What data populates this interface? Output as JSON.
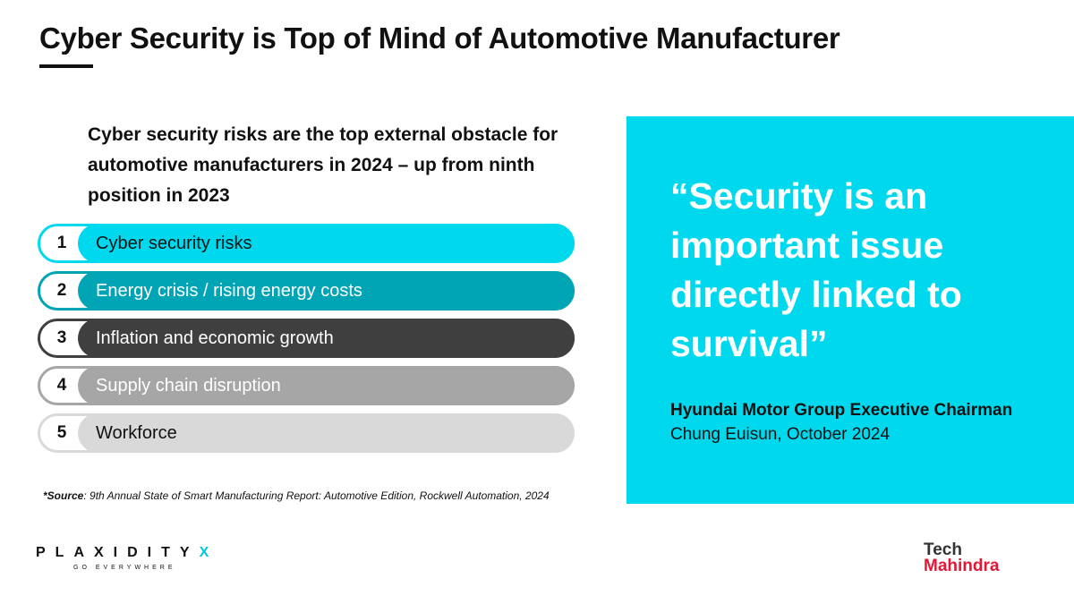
{
  "slide": {
    "title": "Cyber Security is Top of Mind of Automotive Manufacturer"
  },
  "intro": {
    "text": "Cyber security risks are the top external obstacle for automotive manufacturers in 2024 – up from ninth position in 2023"
  },
  "risks": [
    {
      "rank": "1",
      "label": "Cyber security risks",
      "color": "#00d9ed",
      "text_color": "#111111"
    },
    {
      "rank": "2",
      "label": "Energy crisis / rising energy costs",
      "color": "#00a5b5",
      "text_color": "#ffffff"
    },
    {
      "rank": "3",
      "label": "Inflation and economic growth",
      "color": "#3f3f3f",
      "text_color": "#ffffff"
    },
    {
      "rank": "4",
      "label": "Supply chain disruption",
      "color": "#a6a6a6",
      "text_color": "#ffffff"
    },
    {
      "rank": "5",
      "label": "Workforce",
      "color": "#d9d9d9",
      "text_color": "#111111"
    }
  ],
  "source": {
    "label": "*Source",
    "text": ": 9th Annual State of Smart Manufacturing Report: Automotive Edition, Rockwell Automation, 2024"
  },
  "quote": {
    "text": "“Security is an important issue directly linked to survival”",
    "attribution_bold": "Hyundai Motor Group Executive Chairman",
    "attribution_rest": " Chung Euisun, October 2024",
    "panel_color": "#00d9ed"
  },
  "logos": {
    "plaxidity_word": "PLAXIDITY",
    "plaxidity_x": "X",
    "plaxidity_tagline": "GO EVERYWHERE",
    "techm_line1": "Tech",
    "techm_line2": "Mahindra"
  }
}
